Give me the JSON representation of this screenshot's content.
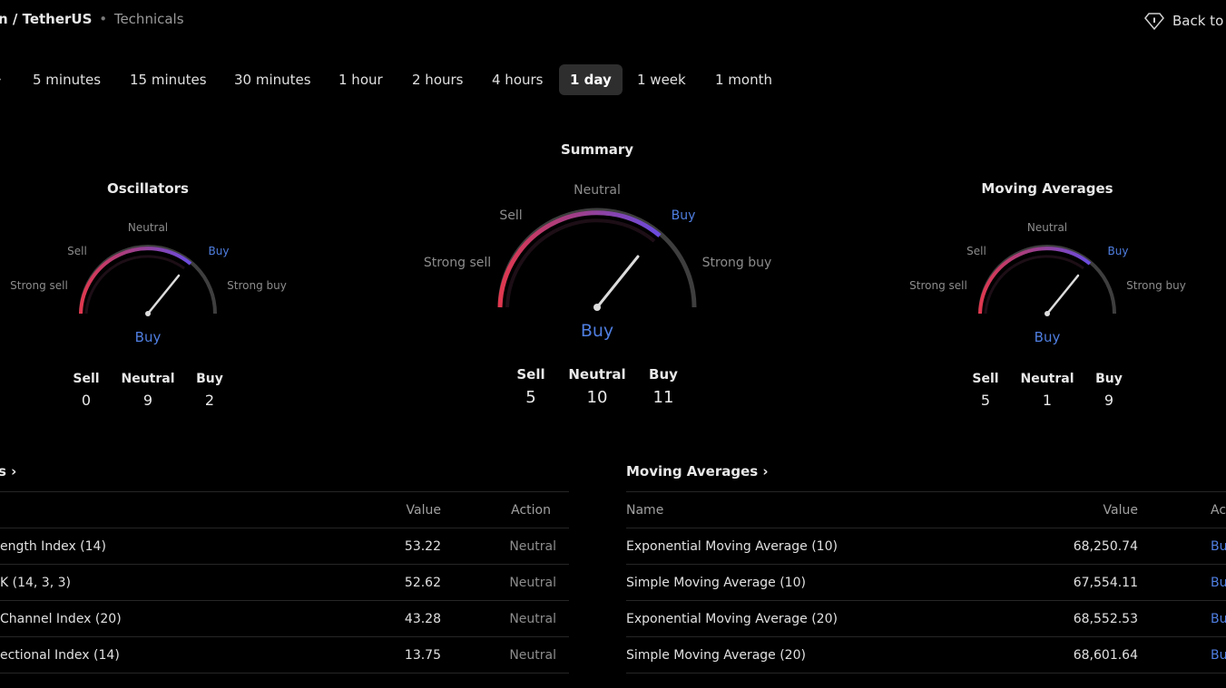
{
  "header": {
    "pair": "n / TetherUS",
    "separator": "•",
    "section": "Technicals",
    "back": "Back to"
  },
  "tabs": {
    "cut_label": "›",
    "items": [
      {
        "label": "5 minutes",
        "active": false
      },
      {
        "label": "15 minutes",
        "active": false
      },
      {
        "label": "30 minutes",
        "active": false
      },
      {
        "label": "1 hour",
        "active": false
      },
      {
        "label": "2 hours",
        "active": false
      },
      {
        "label": "4 hours",
        "active": false
      },
      {
        "label": "1 day",
        "active": true
      },
      {
        "label": "1 week",
        "active": false
      },
      {
        "label": "1 month",
        "active": false
      }
    ]
  },
  "gauges": {
    "oscillators": {
      "title": "Oscillators",
      "labels": {
        "strong_sell": "Strong sell",
        "sell": "Sell",
        "neutral": "Neutral",
        "buy": "Buy",
        "strong_buy": "Strong buy"
      },
      "verdict": "Buy",
      "counts": {
        "sell_label": "Sell",
        "sell": "0",
        "neutral_label": "Neutral",
        "neutral": "9",
        "buy_label": "Buy",
        "buy": "2"
      }
    },
    "summary": {
      "title": "Summary",
      "labels": {
        "strong_sell": "Strong sell",
        "sell": "Sell",
        "neutral": "Neutral",
        "buy": "Buy",
        "strong_buy": "Strong buy"
      },
      "verdict": "Buy",
      "counts": {
        "sell_label": "Sell",
        "sell": "5",
        "neutral_label": "Neutral",
        "neutral": "10",
        "buy_label": "Buy",
        "buy": "11"
      }
    },
    "moving_averages": {
      "title": "Moving Averages",
      "labels": {
        "strong_sell": "Strong sell",
        "sell": "Sell",
        "neutral": "Neutral",
        "buy": "Buy",
        "strong_buy": "Strong buy"
      },
      "verdict": "Buy",
      "counts": {
        "sell_label": "Sell",
        "sell": "5",
        "neutral_label": "Neutral",
        "neutral": "1",
        "buy_label": "Buy",
        "buy": "9"
      }
    }
  },
  "osc_table": {
    "title": "s ›",
    "columns": {
      "value": "Value",
      "action": "Action"
    },
    "rows": [
      {
        "name": "ength Index (14)",
        "value": "53.22",
        "action": "Neutral"
      },
      {
        "name": "K (14, 3, 3)",
        "value": "52.62",
        "action": "Neutral"
      },
      {
        "name": "Channel Index (20)",
        "value": "43.28",
        "action": "Neutral"
      },
      {
        "name": "ectional Index (14)",
        "value": "13.75",
        "action": "Neutral"
      }
    ]
  },
  "ma_table": {
    "title": "Moving Averages ›",
    "columns": {
      "name": "Name",
      "value": "Value",
      "action": "Act"
    },
    "rows": [
      {
        "name": "Exponential Moving Average (10)",
        "value": "68,250.74",
        "action": "Bu"
      },
      {
        "name": "Simple Moving Average (10)",
        "value": "67,554.11",
        "action": "Bu"
      },
      {
        "name": "Exponential Moving Average (20)",
        "value": "68,552.53",
        "action": "Bu"
      },
      {
        "name": "Simple Moving Average (20)",
        "value": "68,601.64",
        "action": "Bu"
      }
    ]
  }
}
